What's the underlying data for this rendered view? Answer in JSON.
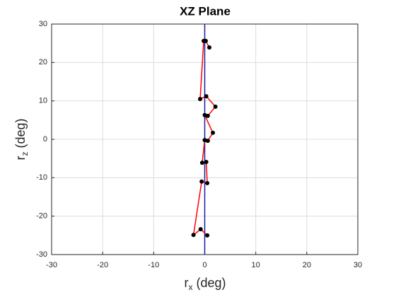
{
  "chart_data": {
    "type": "scatter_line",
    "title": "XZ Plane",
    "xlabel": {
      "base": "r",
      "sub": "x",
      "rest": " (deg)"
    },
    "ylabel": {
      "base": "r",
      "sub": "z",
      "rest": " (deg)"
    },
    "xlim": [
      -30,
      30
    ],
    "ylim": [
      -30,
      30
    ],
    "xticks": [
      -30,
      -20,
      -10,
      0,
      10,
      20,
      30
    ],
    "yticks": [
      -30,
      -20,
      -10,
      0,
      10,
      20,
      30
    ],
    "grid": true,
    "reference_line": {
      "x": 0,
      "color": "#1a1aa6"
    },
    "series": [
      {
        "color": "#ff0000",
        "marker_color": "#000000",
        "x": [
          0.9,
          0.2,
          -0.2,
          -0.9,
          0.3,
          2.1,
          0.6,
          0,
          1.6,
          0.6,
          0,
          -0.5,
          0.3,
          0.5,
          -0.6,
          -2.2,
          -0.8,
          0.5
        ],
        "values": [
          23.9,
          25.6,
          25.6,
          10.5,
          11.2,
          8.5,
          6.1,
          6.3,
          1.7,
          -0.4,
          -0.2,
          -6.1,
          -5.9,
          -11.4,
          -11.0,
          -24.9,
          -23.4,
          -25.0
        ]
      }
    ]
  }
}
